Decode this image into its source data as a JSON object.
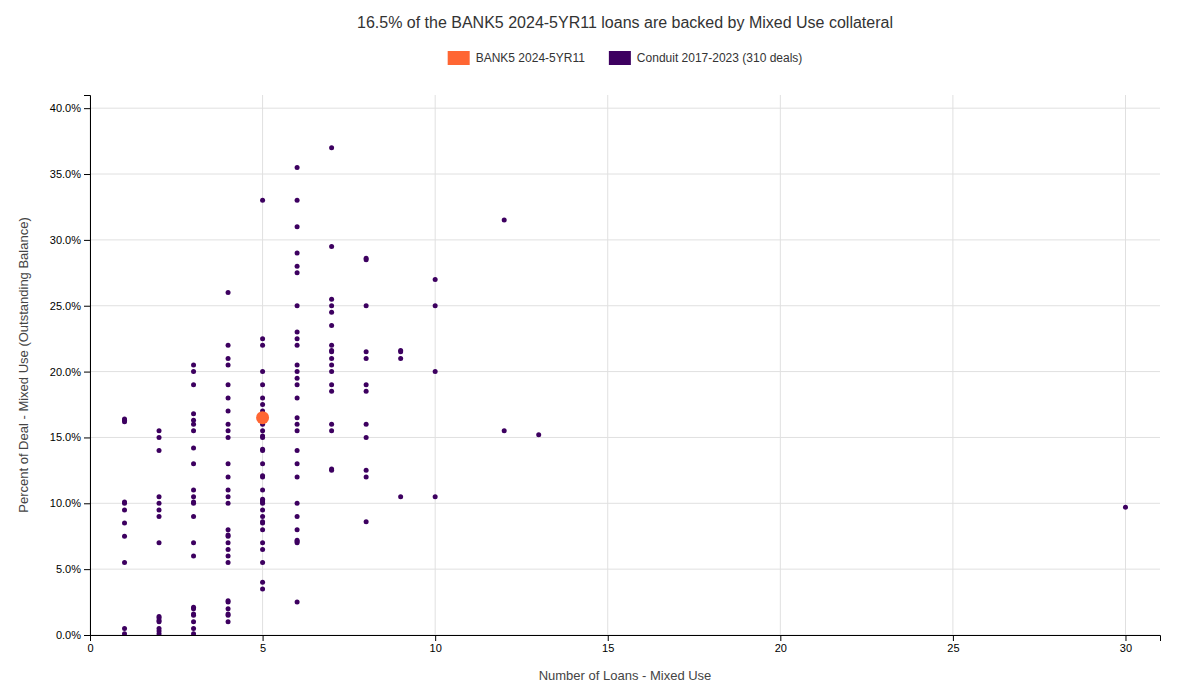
{
  "chart_data": {
    "type": "scatter",
    "title": "16.5% of the BANK5 2024-5YR11 loans are backed by Mixed Use collateral",
    "xlabel": "Number of Loans - Mixed Use",
    "ylabel": "Percent of Deal - Mixed Use (Outstanding Balance)",
    "xlim": [
      0,
      31
    ],
    "ylim": [
      0,
      0.41
    ],
    "xticks": [
      0,
      5,
      10,
      15,
      20,
      25,
      30
    ],
    "yticks": [
      {
        "value": 0.0,
        "label": "0.0%"
      },
      {
        "value": 0.05,
        "label": "5.0%"
      },
      {
        "value": 0.1,
        "label": "10.0%"
      },
      {
        "value": 0.15,
        "label": "15.0%"
      },
      {
        "value": 0.2,
        "label": "20.0%"
      },
      {
        "value": 0.25,
        "label": "25.0%"
      },
      {
        "value": 0.3,
        "label": "30.0%"
      },
      {
        "value": 0.35,
        "label": "35.0%"
      },
      {
        "value": 0.4,
        "label": "40.0%"
      }
    ],
    "grid": true,
    "legend": "top",
    "series": [
      {
        "name": "BANK5 2024-5YR11",
        "color": "#FF6633",
        "marker": "circle",
        "x": [
          5
        ],
        "values": [
          0.165
        ]
      },
      {
        "name": "Conduit 2017-2023 (310 deals)",
        "color": "#3D0060",
        "marker": "point",
        "x": [
          1,
          1,
          1,
          1,
          1,
          1,
          1,
          1,
          1,
          1,
          1,
          2,
          2,
          2,
          2,
          2,
          2,
          2,
          2,
          2,
          2,
          2,
          2,
          2,
          2,
          2,
          3,
          3,
          3,
          3,
          3,
          3,
          3,
          3,
          3,
          3,
          3,
          3,
          3,
          3,
          3,
          3,
          3,
          3,
          3,
          3,
          3,
          3,
          3,
          4,
          4,
          4,
          4,
          4,
          4,
          4,
          4,
          4,
          4,
          4,
          4,
          4,
          4,
          4,
          4,
          4,
          4,
          4,
          4,
          4,
          4,
          4,
          4,
          4,
          4,
          4,
          4,
          5,
          5,
          5,
          5,
          5,
          5,
          5,
          5,
          5,
          5,
          5,
          5,
          5,
          5,
          5,
          5,
          5,
          5,
          5,
          5,
          5,
          5,
          5,
          5,
          5,
          5,
          5,
          5,
          5,
          5,
          5,
          5,
          5,
          5,
          5,
          6,
          6,
          6,
          6,
          6,
          6,
          6,
          6,
          6,
          6,
          6,
          6,
          6,
          6,
          6,
          6,
          6,
          6,
          6,
          6,
          6,
          6,
          6,
          6,
          6,
          6,
          6,
          6,
          7,
          7,
          7,
          7,
          7,
          7,
          7,
          7,
          7,
          7,
          7,
          7,
          7,
          7,
          7,
          7,
          7,
          7,
          8,
          8,
          8,
          8,
          8,
          8,
          8,
          8,
          8,
          8,
          8,
          8,
          9,
          9,
          9,
          9,
          10,
          10,
          10,
          10,
          12,
          12,
          13,
          30
        ],
        "values": [
          0.001,
          0.005,
          0.055,
          0.075,
          0.085,
          0.095,
          0.1,
          0.101,
          0.162,
          0.163,
          0.164,
          0.001,
          0.003,
          0.005,
          0.01,
          0.011,
          0.013,
          0.014,
          0.07,
          0.09,
          0.095,
          0.1,
          0.105,
          0.14,
          0.15,
          0.155,
          0.001,
          0.005,
          0.01,
          0.015,
          0.016,
          0.02,
          0.021,
          0.06,
          0.07,
          0.09,
          0.1,
          0.101,
          0.105,
          0.11,
          0.13,
          0.142,
          0.155,
          0.16,
          0.163,
          0.168,
          0.19,
          0.2,
          0.205,
          0.01,
          0.015,
          0.016,
          0.02,
          0.025,
          0.026,
          0.055,
          0.06,
          0.065,
          0.07,
          0.075,
          0.076,
          0.08,
          0.1,
          0.105,
          0.11,
          0.12,
          0.13,
          0.15,
          0.155,
          0.16,
          0.17,
          0.18,
          0.19,
          0.205,
          0.21,
          0.22,
          0.26,
          0.035,
          0.04,
          0.055,
          0.065,
          0.07,
          0.08,
          0.085,
          0.086,
          0.09,
          0.095,
          0.1,
          0.101,
          0.102,
          0.103,
          0.11,
          0.12,
          0.121,
          0.13,
          0.14,
          0.141,
          0.15,
          0.151,
          0.155,
          0.16,
          0.165,
          0.166,
          0.167,
          0.17,
          0.175,
          0.18,
          0.19,
          0.2,
          0.22,
          0.225,
          0.33,
          0.025,
          0.07,
          0.071,
          0.072,
          0.08,
          0.09,
          0.1,
          0.12,
          0.13,
          0.14,
          0.155,
          0.16,
          0.165,
          0.18,
          0.19,
          0.195,
          0.2,
          0.205,
          0.22,
          0.225,
          0.23,
          0.25,
          0.275,
          0.28,
          0.29,
          0.31,
          0.33,
          0.355,
          0.125,
          0.126,
          0.155,
          0.16,
          0.185,
          0.19,
          0.2,
          0.205,
          0.21,
          0.215,
          0.216,
          0.22,
          0.235,
          0.245,
          0.25,
          0.255,
          0.295,
          0.37,
          0.086,
          0.12,
          0.125,
          0.15,
          0.16,
          0.185,
          0.19,
          0.21,
          0.215,
          0.25,
          0.285,
          0.286,
          0.105,
          0.21,
          0.215,
          0.216,
          0.105,
          0.2,
          0.25,
          0.27,
          0.155,
          0.315,
          0.152,
          0.097
        ]
      }
    ]
  }
}
